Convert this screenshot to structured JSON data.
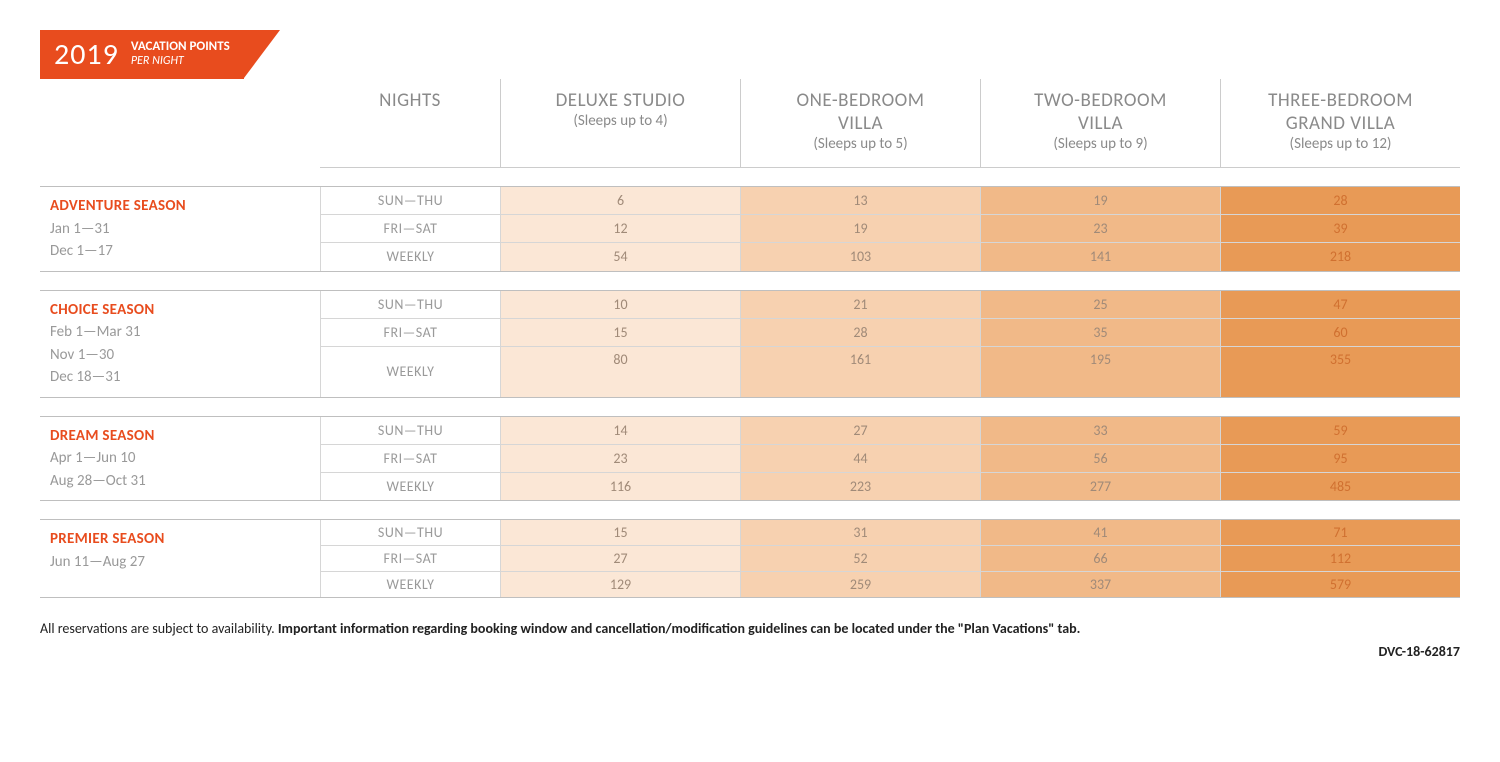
{
  "header": {
    "year": "2019",
    "title": "VACATION POINTS",
    "subtitle": "PER NIGHT"
  },
  "columns": [
    {
      "title": "NIGHTS",
      "sub": ""
    },
    {
      "title": "DELUXE STUDIO",
      "sub": "(Sleeps up to 4)"
    },
    {
      "title": "ONE-BEDROOM VILLA",
      "sub": "(Sleeps up to 5)"
    },
    {
      "title": "TWO-BEDROOM VILLA",
      "sub": "(Sleeps up to 9)"
    },
    {
      "title": "THREE-BEDROOM GRAND VILLA",
      "sub": "(Sleeps up to 12)"
    }
  ],
  "night_labels": [
    "SUN—THU",
    "FRI—SAT",
    "WEEKLY"
  ],
  "cell_colors": {
    "shade1": "#fbe7d6",
    "shade2": "#f7d1b0",
    "shade3": "#f1b988",
    "shade4": "#e89a56",
    "value_text": "#a08068",
    "value_text_dark": "#c08050"
  },
  "seasons": [
    {
      "name": "ADVENTURE SEASON",
      "dates": [
        "Jan 1—31",
        "Dec 1—17"
      ],
      "rows": [
        {
          "night_idx": 0,
          "vals": [
            6,
            13,
            19,
            28
          ]
        },
        {
          "night_idx": 1,
          "vals": [
            12,
            19,
            23,
            39
          ]
        },
        {
          "night_idx": 2,
          "vals": [
            54,
            103,
            141,
            218
          ]
        }
      ]
    },
    {
      "name": "CHOICE SEASON",
      "dates": [
        "Feb 1—Mar 31",
        "Nov 1—30",
        "Dec 18—31"
      ],
      "rows": [
        {
          "night_idx": 0,
          "vals": [
            10,
            21,
            25,
            47
          ]
        },
        {
          "night_idx": 1,
          "vals": [
            15,
            28,
            35,
            60
          ]
        },
        {
          "night_idx": 2,
          "vals": [
            80,
            161,
            195,
            355
          ]
        }
      ]
    },
    {
      "name": "DREAM SEASON",
      "dates": [
        "Apr 1—Jun 10",
        "Aug 28—Oct 31"
      ],
      "rows": [
        {
          "night_idx": 0,
          "vals": [
            14,
            27,
            33,
            59
          ]
        },
        {
          "night_idx": 1,
          "vals": [
            23,
            44,
            56,
            95
          ]
        },
        {
          "night_idx": 2,
          "vals": [
            116,
            223,
            277,
            485
          ]
        }
      ]
    },
    {
      "name": "PREMIER SEASON",
      "dates": [
        "Jun 11—Aug 27"
      ],
      "rows": [
        {
          "night_idx": 0,
          "vals": [
            15,
            31,
            41,
            71
          ]
        },
        {
          "night_idx": 1,
          "vals": [
            27,
            52,
            66,
            112
          ]
        },
        {
          "night_idx": 2,
          "vals": [
            129,
            259,
            337,
            579
          ]
        }
      ]
    }
  ],
  "footer": {
    "lead": "All reservations are subject to availability. ",
    "bold": "Important information regarding booking window and cancellation/modification guidelines can be located under the \"Plan Vacations\" tab.",
    "doc_id": "DVC-18-62817"
  }
}
